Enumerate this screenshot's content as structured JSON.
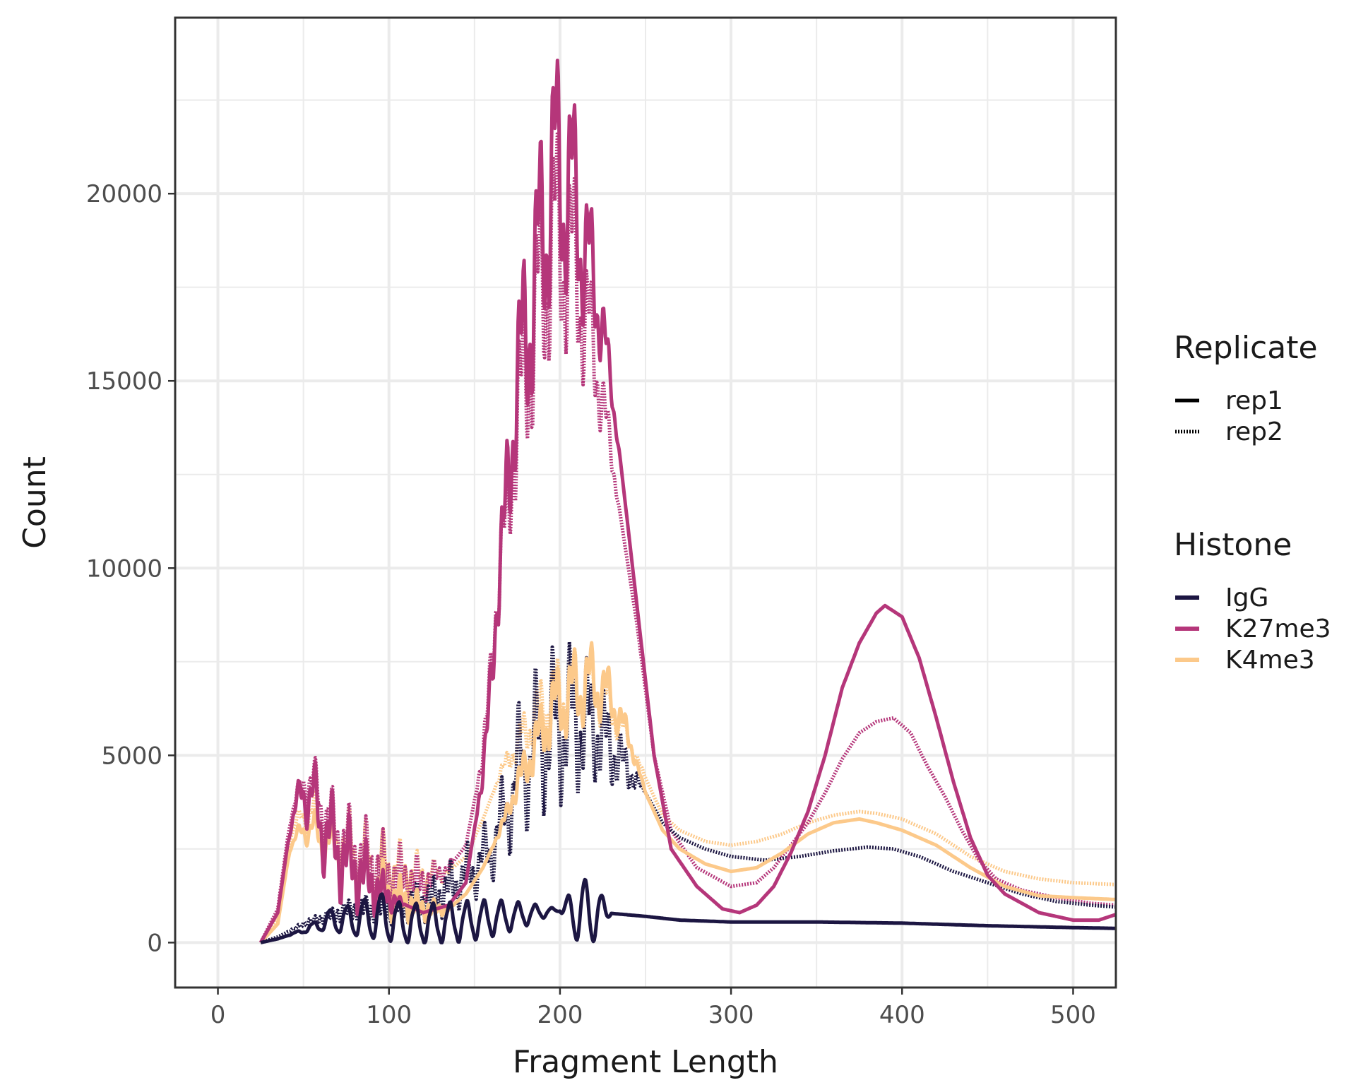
{
  "chart_data": {
    "type": "line",
    "xlabel": "Fragment Length",
    "ylabel": "Count",
    "xlim": [
      -25,
      525
    ],
    "ylim": [
      -1200,
      24700
    ],
    "x_ticks": [
      0,
      100,
      200,
      300,
      400,
      500
    ],
    "x_tick_labels": [
      "0",
      "100",
      "200",
      "300",
      "400",
      "500"
    ],
    "y_ticks": [
      0,
      5000,
      10000,
      15000,
      20000
    ],
    "y_tick_labels": [
      "0",
      "5000",
      "10000",
      "15000",
      "20000"
    ],
    "grid": true,
    "legend_placement": "right",
    "legends": {
      "replicate": {
        "title": "Replicate",
        "entries": [
          {
            "label": "rep1",
            "style": "solid"
          },
          {
            "label": "rep2",
            "style": "dotted"
          }
        ]
      },
      "histone": {
        "title": "Histone",
        "entries": [
          {
            "label": "IgG",
            "color": "#1c1642"
          },
          {
            "label": "K27me3",
            "color": "#b5367a"
          },
          {
            "label": "K4me3",
            "color": "#fcc98a"
          }
        ]
      }
    },
    "series": [
      {
        "histone": "IgG",
        "replicate": "rep1",
        "color": "#1c1642",
        "style": "solid",
        "points": [
          [
            25,
            0
          ],
          [
            35,
            100
          ],
          [
            45,
            250
          ],
          [
            55,
            400
          ],
          [
            65,
            600
          ],
          [
            75,
            600
          ],
          [
            85,
            650
          ],
          [
            95,
            700
          ],
          [
            105,
            550
          ],
          [
            120,
            500
          ],
          [
            140,
            550
          ],
          [
            160,
            650
          ],
          [
            180,
            750
          ],
          [
            195,
            850
          ],
          [
            210,
            820
          ],
          [
            230,
            780
          ],
          [
            250,
            700
          ],
          [
            270,
            600
          ],
          [
            300,
            550
          ],
          [
            350,
            550
          ],
          [
            400,
            520
          ],
          [
            450,
            450
          ],
          [
            500,
            400
          ],
          [
            525,
            380
          ]
        ],
        "osc": [
          [
            40,
            200,
            3,
            10,
            1,
            0,
            60
          ],
          [
            200,
            230,
            2,
            10,
            1,
            60,
            40
          ]
        ]
      },
      {
        "histone": "IgG",
        "replicate": "rep2",
        "color": "#1c1642",
        "style": "dotted",
        "points": [
          [
            25,
            0
          ],
          [
            35,
            150
          ],
          [
            50,
            500
          ],
          [
            65,
            700
          ],
          [
            80,
            900
          ],
          [
            95,
            900
          ],
          [
            110,
            1000
          ],
          [
            125,
            1150
          ],
          [
            140,
            1600
          ],
          [
            155,
            2200
          ],
          [
            165,
            3000
          ],
          [
            175,
            4500
          ],
          [
            190,
            5500
          ],
          [
            205,
            5900
          ],
          [
            220,
            5800
          ],
          [
            235,
            4900
          ],
          [
            250,
            4000
          ],
          [
            260,
            3200
          ],
          [
            270,
            2800
          ],
          [
            285,
            2500
          ],
          [
            300,
            2300
          ],
          [
            320,
            2200
          ],
          [
            340,
            2300
          ],
          [
            360,
            2450
          ],
          [
            380,
            2550
          ],
          [
            395,
            2500
          ],
          [
            410,
            2300
          ],
          [
            430,
            1900
          ],
          [
            450,
            1600
          ],
          [
            470,
            1300
          ],
          [
            490,
            1100
          ],
          [
            510,
            1000
          ],
          [
            525,
            950
          ]
        ],
        "osc": [
          [
            40,
            250,
            3,
            10,
            0.25,
            0,
            400
          ],
          [
            160,
            250,
            5,
            10,
            0.13,
            0,
            700
          ]
        ]
      },
      {
        "histone": "K27me3",
        "replicate": "rep1",
        "color": "#b5367a",
        "style": "solid",
        "points": [
          [
            25,
            0
          ],
          [
            35,
            800
          ],
          [
            42,
            3000
          ],
          [
            50,
            4200
          ],
          [
            58,
            3500
          ],
          [
            65,
            2800
          ],
          [
            75,
            2200
          ],
          [
            85,
            1800
          ],
          [
            100,
            1200
          ],
          [
            120,
            800
          ],
          [
            135,
            1000
          ],
          [
            145,
            1600
          ],
          [
            155,
            4500
          ],
          [
            165,
            10000
          ],
          [
            175,
            15000
          ],
          [
            185,
            17500
          ],
          [
            195,
            20500
          ],
          [
            205,
            20300
          ],
          [
            215,
            18500
          ],
          [
            225,
            16500
          ],
          [
            235,
            13000
          ],
          [
            245,
            9000
          ],
          [
            255,
            5000
          ],
          [
            265,
            2500
          ],
          [
            280,
            1500
          ],
          [
            295,
            900
          ],
          [
            305,
            800
          ],
          [
            315,
            1000
          ],
          [
            325,
            1500
          ],
          [
            335,
            2400
          ],
          [
            345,
            3500
          ],
          [
            355,
            5000
          ],
          [
            365,
            6800
          ],
          [
            375,
            8000
          ],
          [
            385,
            8800
          ],
          [
            390,
            9000
          ],
          [
            400,
            8700
          ],
          [
            410,
            7600
          ],
          [
            420,
            6000
          ],
          [
            430,
            4300
          ],
          [
            440,
            2800
          ],
          [
            450,
            1800
          ],
          [
            460,
            1300
          ],
          [
            480,
            800
          ],
          [
            500,
            600
          ],
          [
            515,
            600
          ],
          [
            525,
            750
          ]
        ],
        "osc": [
          [
            40,
            110,
            4,
            10,
            0.35,
            0,
            600
          ],
          [
            150,
            235,
            5,
            10,
            0.13,
            0,
            1300
          ]
        ]
      },
      {
        "histone": "K27me3",
        "replicate": "rep2",
        "color": "#b5367a",
        "style": "dotted",
        "points": [
          [
            25,
            0
          ],
          [
            35,
            900
          ],
          [
            42,
            3200
          ],
          [
            50,
            4400
          ],
          [
            58,
            4000
          ],
          [
            65,
            3200
          ],
          [
            75,
            2600
          ],
          [
            85,
            2200
          ],
          [
            100,
            1800
          ],
          [
            120,
            1600
          ],
          [
            135,
            2000
          ],
          [
            145,
            2600
          ],
          [
            155,
            5000
          ],
          [
            165,
            10000
          ],
          [
            175,
            14000
          ],
          [
            185,
            16500
          ],
          [
            195,
            18800
          ],
          [
            205,
            18500
          ],
          [
            215,
            16800
          ],
          [
            225,
            14500
          ],
          [
            235,
            11500
          ],
          [
            245,
            8500
          ],
          [
            255,
            5000
          ],
          [
            265,
            3000
          ],
          [
            280,
            2000
          ],
          [
            300,
            1500
          ],
          [
            315,
            1600
          ],
          [
            325,
            2000
          ],
          [
            335,
            2600
          ],
          [
            345,
            3200
          ],
          [
            355,
            4000
          ],
          [
            365,
            4900
          ],
          [
            375,
            5600
          ],
          [
            385,
            5900
          ],
          [
            395,
            6000
          ],
          [
            405,
            5600
          ],
          [
            415,
            4700
          ],
          [
            425,
            3900
          ],
          [
            435,
            3000
          ],
          [
            445,
            2200
          ],
          [
            455,
            1700
          ],
          [
            470,
            1400
          ],
          [
            490,
            1200
          ],
          [
            510,
            1050
          ],
          [
            525,
            1000
          ]
        ],
        "osc": [
          [
            40,
            140,
            4,
            10,
            0.3,
            0,
            600
          ],
          [
            150,
            235,
            5,
            10,
            0.13,
            0,
            1300
          ]
        ]
      },
      {
        "histone": "K4me3",
        "replicate": "rep1",
        "color": "#fcc98a",
        "style": "solid",
        "points": [
          [
            25,
            0
          ],
          [
            35,
            500
          ],
          [
            42,
            2500
          ],
          [
            50,
            3100
          ],
          [
            58,
            2900
          ],
          [
            65,
            2600
          ],
          [
            75,
            2200
          ],
          [
            85,
            1800
          ],
          [
            100,
            1300
          ],
          [
            120,
            900
          ],
          [
            135,
            900
          ],
          [
            145,
            1300
          ],
          [
            155,
            2000
          ],
          [
            165,
            3000
          ],
          [
            175,
            4200
          ],
          [
            185,
            5200
          ],
          [
            195,
            6200
          ],
          [
            210,
            6800
          ],
          [
            220,
            7000
          ],
          [
            230,
            6500
          ],
          [
            240,
            5500
          ],
          [
            250,
            4000
          ],
          [
            260,
            3000
          ],
          [
            270,
            2500
          ],
          [
            285,
            2100
          ],
          [
            300,
            1900
          ],
          [
            315,
            2000
          ],
          [
            330,
            2400
          ],
          [
            345,
            2900
          ],
          [
            360,
            3200
          ],
          [
            375,
            3300
          ],
          [
            385,
            3200
          ],
          [
            400,
            3000
          ],
          [
            420,
            2600
          ],
          [
            440,
            2000
          ],
          [
            460,
            1500
          ],
          [
            480,
            1250
          ],
          [
            500,
            1200
          ],
          [
            525,
            1150
          ]
        ],
        "osc": [
          [
            40,
            140,
            4,
            10,
            0.3,
            0,
            400
          ],
          [
            160,
            250,
            5,
            10,
            0.12,
            0,
            500
          ]
        ]
      },
      {
        "histone": "K4me3",
        "replicate": "rep2",
        "color": "#fcc98a",
        "style": "dotted",
        "points": [
          [
            25,
            0
          ],
          [
            35,
            600
          ],
          [
            42,
            2800
          ],
          [
            50,
            3500
          ],
          [
            58,
            3300
          ],
          [
            65,
            3000
          ],
          [
            75,
            2600
          ],
          [
            85,
            2300
          ],
          [
            100,
            2000
          ],
          [
            120,
            1800
          ],
          [
            135,
            1900
          ],
          [
            145,
            2300
          ],
          [
            155,
            3300
          ],
          [
            165,
            4500
          ],
          [
            175,
            5300
          ],
          [
            185,
            6000
          ],
          [
            195,
            6500
          ],
          [
            210,
            6800
          ],
          [
            220,
            6900
          ],
          [
            230,
            6300
          ],
          [
            240,
            5400
          ],
          [
            250,
            4400
          ],
          [
            260,
            3400
          ],
          [
            270,
            3000
          ],
          [
            285,
            2700
          ],
          [
            300,
            2600
          ],
          [
            315,
            2700
          ],
          [
            330,
            2900
          ],
          [
            345,
            3200
          ],
          [
            360,
            3400
          ],
          [
            375,
            3500
          ],
          [
            385,
            3450
          ],
          [
            400,
            3300
          ],
          [
            420,
            2900
          ],
          [
            440,
            2300
          ],
          [
            460,
            1900
          ],
          [
            480,
            1700
          ],
          [
            500,
            1600
          ],
          [
            525,
            1550
          ]
        ],
        "osc": [
          [
            40,
            140,
            4,
            10,
            0.3,
            0,
            400
          ],
          [
            160,
            250,
            5,
            10,
            0.12,
            0,
            500
          ]
        ]
      }
    ]
  }
}
